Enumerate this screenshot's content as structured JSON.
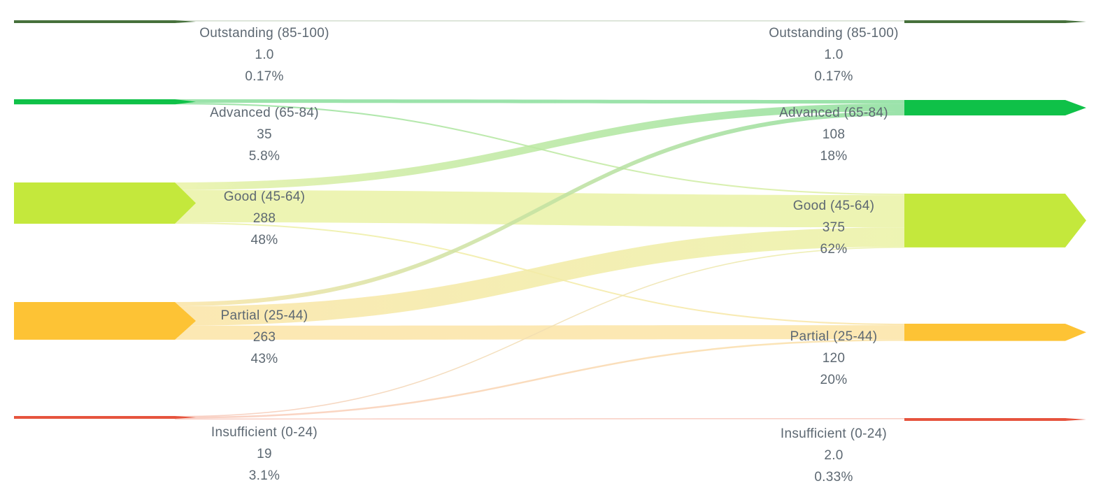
{
  "background_color": "#ffffff",
  "text_color": "#5d6872",
  "chart_data": {
    "type": "sankey",
    "title": "",
    "legend_position": "none",
    "grid": false,
    "columns": [
      "left",
      "right"
    ],
    "categories": [
      {
        "id": "outstanding",
        "label": "Outstanding (85-100)",
        "color": "#46703b",
        "flow_color": "#cfdbca"
      },
      {
        "id": "advanced",
        "label": "Advanced (65-84)",
        "color": "#0fc148",
        "flow_color": "#8ade9c"
      },
      {
        "id": "good",
        "label": "Good (45-64)",
        "color": "#c4e83c",
        "flow_color": "#eaf2a6"
      },
      {
        "id": "partial",
        "label": "Partial (25-44)",
        "color": "#fdc335",
        "flow_color": "#fbe4a6"
      },
      {
        "id": "insufficient",
        "label": "Insufficient (0-24)",
        "color": "#e6543e",
        "flow_color": "#f8c8bc"
      }
    ],
    "left_nodes": [
      {
        "category": "outstanding",
        "value": 1,
        "value_label": "1.0",
        "pct_label": "0.17%"
      },
      {
        "category": "advanced",
        "value": 35,
        "value_label": "35",
        "pct_label": "5.8%"
      },
      {
        "category": "good",
        "value": 288,
        "value_label": "288",
        "pct_label": "48%"
      },
      {
        "category": "partial",
        "value": 263,
        "value_label": "263",
        "pct_label": "43%"
      },
      {
        "category": "insufficient",
        "value": 19,
        "value_label": "19",
        "pct_label": "3.1%"
      }
    ],
    "right_nodes": [
      {
        "category": "outstanding",
        "value": 1,
        "value_label": "1.0",
        "pct_label": "0.17%"
      },
      {
        "category": "advanced",
        "value": 108,
        "value_label": "108",
        "pct_label": "18%"
      },
      {
        "category": "good",
        "value": 375,
        "value_label": "375",
        "pct_label": "62%"
      },
      {
        "category": "partial",
        "value": 120,
        "value_label": "120",
        "pct_label": "20%"
      },
      {
        "category": "insufficient",
        "value": 2,
        "value_label": "2.0",
        "pct_label": "0.33%"
      }
    ],
    "links": [
      {
        "source": "outstanding",
        "target": "outstanding",
        "value": 1
      },
      {
        "source": "advanced",
        "target": "advanced",
        "value": 25
      },
      {
        "source": "advanced",
        "target": "good",
        "value": 10
      },
      {
        "source": "good",
        "target": "advanced",
        "value": 53
      },
      {
        "source": "good",
        "target": "good",
        "value": 225
      },
      {
        "source": "good",
        "target": "partial",
        "value": 10
      },
      {
        "source": "partial",
        "target": "advanced",
        "value": 30
      },
      {
        "source": "partial",
        "target": "good",
        "value": 135
      },
      {
        "source": "partial",
        "target": "partial",
        "value": 98
      },
      {
        "source": "insufficient",
        "target": "good",
        "value": 5
      },
      {
        "source": "insufficient",
        "target": "partial",
        "value": 12
      },
      {
        "source": "insufficient",
        "target": "insufficient",
        "value": 2
      }
    ]
  }
}
